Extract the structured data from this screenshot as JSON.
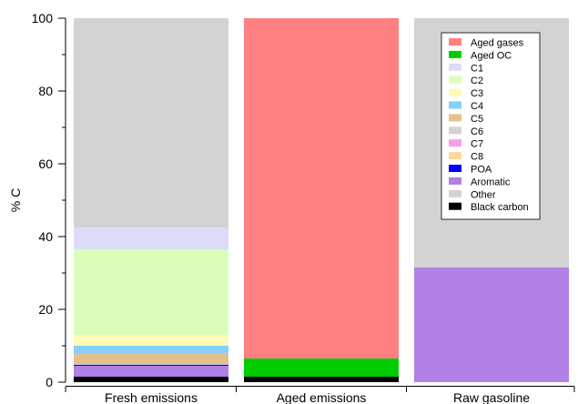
{
  "chart_data": {
    "type": "bar",
    "stacked": true,
    "ylabel": "% C",
    "ylim": [
      0,
      100
    ],
    "yticks": [
      0,
      20,
      40,
      60,
      80,
      100
    ],
    "categories": [
      "Fresh emissions",
      "Aged emissions",
      "Raw gasoline"
    ],
    "legend_position": "top-right",
    "series": [
      {
        "name": "Black carbon",
        "color": "#000000",
        "values": [
          1.5,
          1.5,
          0
        ]
      },
      {
        "name": "Other",
        "color": "#d3d3d3",
        "values": [
          0,
          0,
          0
        ]
      },
      {
        "name": "Aromatic",
        "color": "#b180e4",
        "values": [
          3.0,
          0,
          31.5
        ]
      },
      {
        "name": "POA",
        "color": "#0000ff",
        "values": [
          0.3,
          0,
          0
        ]
      },
      {
        "name": "C8",
        "color": "#fbd79c",
        "values": [
          0,
          0,
          0
        ]
      },
      {
        "name": "C7",
        "color": "#f79fe8",
        "values": [
          0,
          0,
          0
        ]
      },
      {
        "name": "C6",
        "color": "#d3d3d3",
        "values": [
          0.2,
          0,
          0
        ]
      },
      {
        "name": "C5",
        "color": "#e4c08c",
        "values": [
          3.0,
          0,
          0
        ]
      },
      {
        "name": "C4",
        "color": "#87cefa",
        "values": [
          2.0,
          0,
          0
        ]
      },
      {
        "name": "C3",
        "color": "#fcfbb8",
        "values": [
          3.0,
          0,
          0
        ]
      },
      {
        "name": "C2",
        "color": "#dcfcbc",
        "values": [
          23.5,
          0,
          0
        ]
      },
      {
        "name": "C1",
        "color": "#dcdcf8",
        "values": [
          6.0,
          0,
          0
        ]
      },
      {
        "name": "Aged OC",
        "color": "#00cc00",
        "values": [
          0,
          5.0,
          0
        ]
      },
      {
        "name": "Aged gases",
        "color": "#ff8080",
        "values": [
          0,
          93.5,
          0
        ]
      },
      {
        "name": "Other",
        "color": "#d3d3d3",
        "values": [
          57.5,
          0,
          68.5
        ]
      }
    ],
    "legend": [
      {
        "name": "Aged gases",
        "color": "#ff8080"
      },
      {
        "name": "Aged OC",
        "color": "#00cc00"
      },
      {
        "name": "C1",
        "color": "#dcdcf8"
      },
      {
        "name": "C2",
        "color": "#dcfcbc"
      },
      {
        "name": "C3",
        "color": "#fcfbb8"
      },
      {
        "name": "C4",
        "color": "#87cefa"
      },
      {
        "name": "C5",
        "color": "#e4c08c"
      },
      {
        "name": "C6",
        "color": "#d3d3d3"
      },
      {
        "name": "C7",
        "color": "#f79fe8"
      },
      {
        "name": "C8",
        "color": "#fbd79c"
      },
      {
        "name": "POA",
        "color": "#0000ff"
      },
      {
        "name": "Aromatic",
        "color": "#b180e4"
      },
      {
        "name": "Other",
        "color": "#d3d3d3"
      },
      {
        "name": "Black carbon",
        "color": "#000000"
      }
    ]
  }
}
